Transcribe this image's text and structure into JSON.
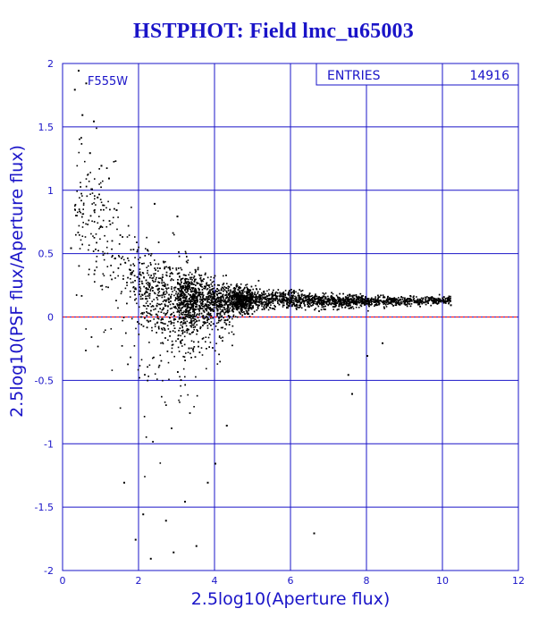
{
  "title": "HSTPHOT: Field lmc_u65003",
  "colors": {
    "accent": "#1a14c8",
    "points": "#000000",
    "reference_line": "#ff0000",
    "grid": "#1a14c8"
  },
  "chart_data": {
    "type": "scatter",
    "title": "HSTPHOT: Field lmc_u65003",
    "xlabel": "2.5log10(Aperture flux)",
    "ylabel": "2.5log10(PSF flux/Aperture flux)",
    "xlim": [
      0,
      12
    ],
    "ylim": [
      -2,
      2
    ],
    "xticks": [
      0,
      2,
      4,
      6,
      8,
      10,
      12
    ],
    "yticks": [
      -2,
      -1.5,
      -1,
      -0.5,
      0,
      0.5,
      1,
      1.5,
      2
    ],
    "xtick_labels": [
      "0",
      "2",
      "4",
      "6",
      "8",
      "10",
      "12"
    ],
    "ytick_labels": [
      "-2",
      "-1.5",
      "-1",
      "-0.5",
      "0",
      "0.5",
      "1",
      "1.5",
      "2"
    ],
    "grid": true,
    "filter_label": "F555W",
    "stats": {
      "label": "ENTRIES",
      "value": "14916"
    },
    "reference_line_y": 0,
    "trend": {
      "x": [
        0.5,
        1.0,
        1.5,
        2.0,
        2.5,
        3.0,
        3.5,
        4.0,
        5.0,
        6.0,
        7.0,
        8.0,
        9.0,
        10.0
      ],
      "median_y": [
        0.9,
        0.75,
        0.5,
        0.3,
        0.18,
        0.15,
        0.14,
        0.14,
        0.14,
        0.14,
        0.13,
        0.13,
        0.13,
        0.14
      ],
      "spread": [
        0.45,
        0.45,
        0.4,
        0.35,
        0.3,
        0.25,
        0.2,
        0.14,
        0.08,
        0.06,
        0.05,
        0.04,
        0.03,
        0.03
      ]
    },
    "points": [
      [
        0.3,
        1.8
      ],
      [
        0.4,
        1.95
      ],
      [
        0.6,
        1.85
      ],
      [
        0.5,
        1.6
      ],
      [
        0.8,
        1.55
      ],
      [
        0.7,
        1.3
      ],
      [
        1.0,
        1.2
      ],
      [
        1.2,
        1.1
      ],
      [
        0.9,
        0.95
      ],
      [
        1.4,
        0.85
      ],
      [
        2.3,
        -1.9
      ],
      [
        2.9,
        -1.85
      ],
      [
        3.5,
        -1.8
      ],
      [
        2.7,
        -1.6
      ],
      [
        3.2,
        -1.45
      ],
      [
        1.6,
        -1.3
      ],
      [
        1.9,
        -1.75
      ],
      [
        2.1,
        -1.55
      ],
      [
        6.6,
        -1.7
      ],
      [
        7.5,
        -0.45
      ],
      [
        7.6,
        -0.6
      ],
      [
        8.0,
        -0.3
      ],
      [
        8.4,
        -0.2
      ],
      [
        10.2,
        0.1
      ],
      [
        3.8,
        -1.3
      ],
      [
        4.0,
        -1.15
      ],
      [
        4.3,
        -0.85
      ],
      [
        2.4,
        0.9
      ],
      [
        3.0,
        0.8
      ],
      [
        0.2,
        0.55
      ]
    ]
  }
}
